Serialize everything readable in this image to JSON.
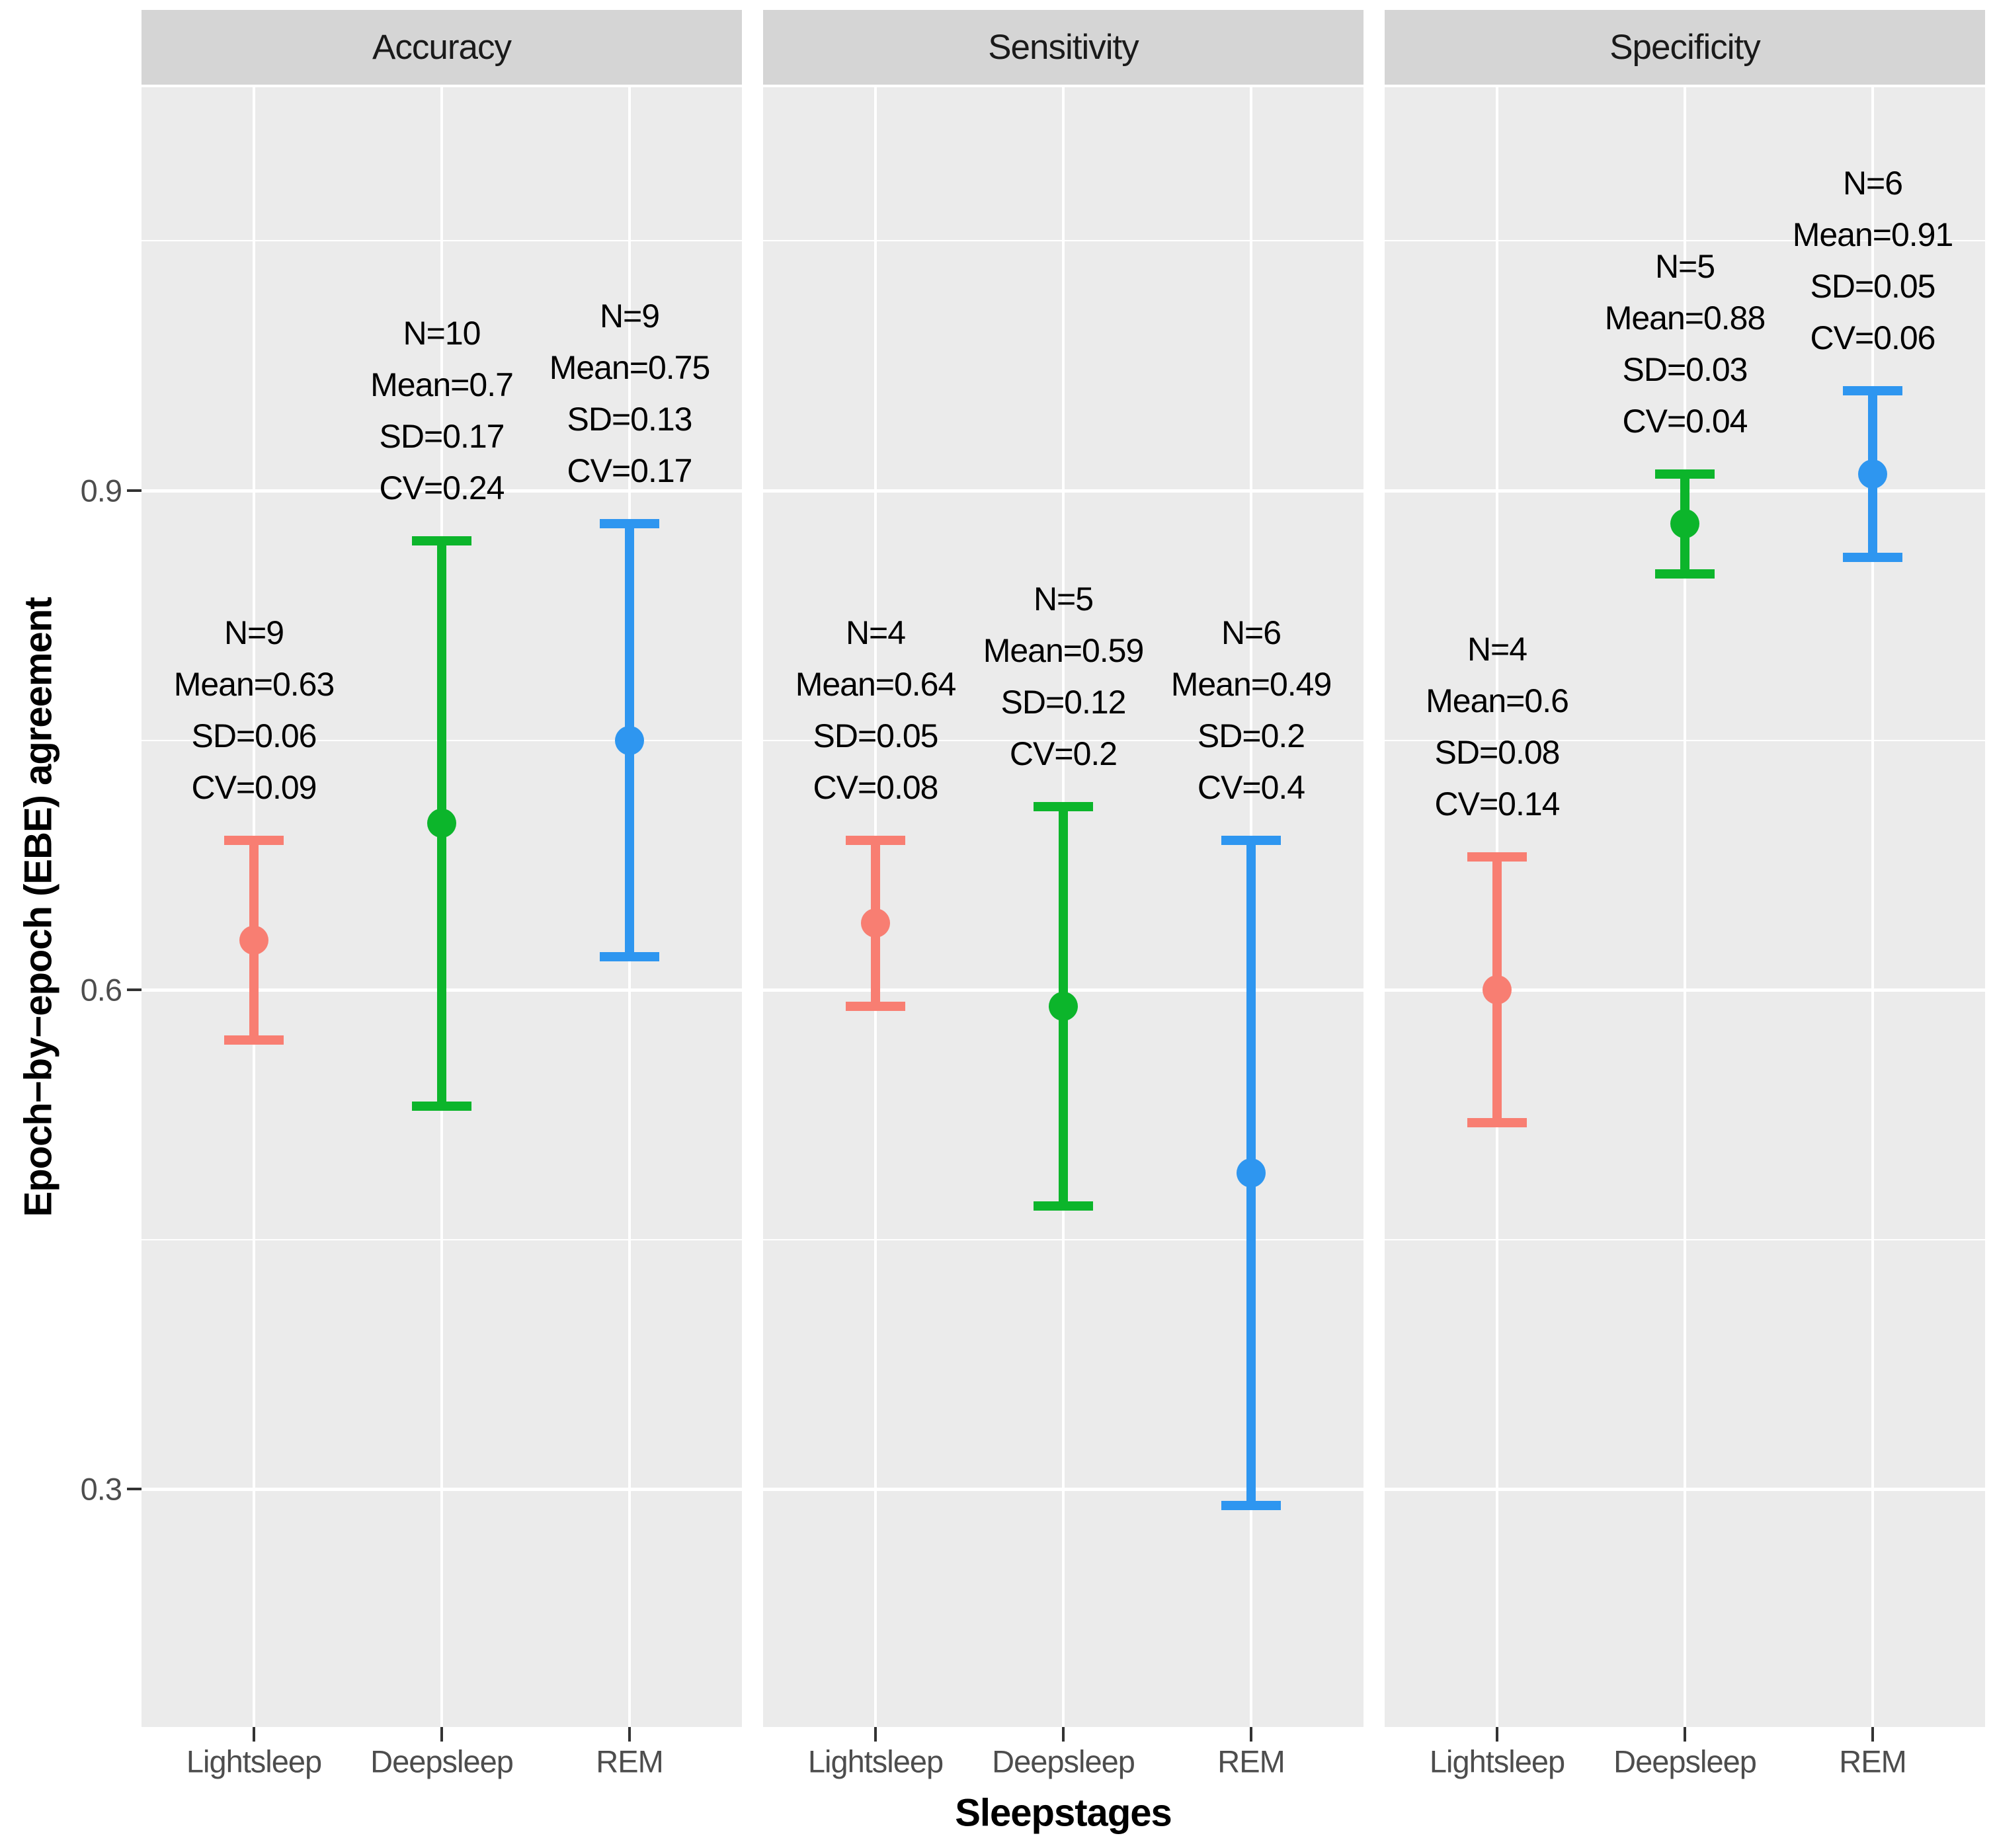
{
  "chart_data": {
    "type": "errorbar",
    "title": "",
    "xlabel": "Sleepstages",
    "ylabel": "Epoch−by−epoch (EBE) agreement",
    "categories": [
      "Lightsleep",
      "Deepsleep",
      "REM"
    ],
    "yticks": [
      {
        "value": 0.9,
        "label": "0.9"
      },
      {
        "value": 0.6,
        "label": "0.6"
      },
      {
        "value": 0.3,
        "label": "0.3"
      }
    ],
    "yticks_minor": [
      1.05,
      0.75,
      0.45
    ],
    "ylim": [
      0.16,
      1.14
    ],
    "grid": "white major+minor horizontal, white major vertical on grey panel",
    "legend_position": "none",
    "error_bar_rule": "mean ± SD",
    "panel_bg": "#EBEBEB",
    "strip_bg": "#D5D5D5",
    "colors": {
      "Lightsleep": "#F87E72",
      "Deepsleep": "#0CB52B",
      "REM": "#2E96F0"
    },
    "facets": [
      {
        "label": "Accuracy",
        "points": [
          {
            "stage": "Lightsleep",
            "n": 9,
            "mean": 0.63,
            "sd": 0.06,
            "cv": 0.09,
            "labels": {
              "n": "N=9",
              "mean": "Mean=0.63",
              "sd": "SD=0.06",
              "cv": "CV=0.09"
            }
          },
          {
            "stage": "Deepsleep",
            "n": 10,
            "mean": 0.7,
            "sd": 0.17,
            "cv": 0.24,
            "labels": {
              "n": "N=10",
              "mean": "Mean=0.7",
              "sd": "SD=0.17",
              "cv": "CV=0.24"
            }
          },
          {
            "stage": "REM",
            "n": 9,
            "mean": 0.75,
            "sd": 0.13,
            "cv": 0.17,
            "labels": {
              "n": "N=9",
              "mean": "Mean=0.75",
              "sd": "SD=0.13",
              "cv": "CV=0.17"
            }
          }
        ]
      },
      {
        "label": "Sensitivity",
        "points": [
          {
            "stage": "Lightsleep",
            "n": 4,
            "mean": 0.64,
            "sd": 0.05,
            "cv": 0.08,
            "labels": {
              "n": "N=4",
              "mean": "Mean=0.64",
              "sd": "SD=0.05",
              "cv": "CV=0.08"
            }
          },
          {
            "stage": "Deepsleep",
            "n": 5,
            "mean": 0.59,
            "sd": 0.12,
            "cv": 0.2,
            "labels": {
              "n": "N=5",
              "mean": "Mean=0.59",
              "sd": "SD=0.12",
              "cv": "CV=0.2"
            }
          },
          {
            "stage": "REM",
            "n": 6,
            "mean": 0.49,
            "sd": 0.2,
            "cv": 0.4,
            "labels": {
              "n": "N=6",
              "mean": "Mean=0.49",
              "sd": "SD=0.2",
              "cv": "CV=0.4"
            }
          }
        ]
      },
      {
        "label": "Specificity",
        "points": [
          {
            "stage": "Lightsleep",
            "n": 4,
            "mean": 0.6,
            "sd": 0.08,
            "cv": 0.14,
            "labels": {
              "n": "N=4",
              "mean": "Mean=0.6",
              "sd": "SD=0.08",
              "cv": "CV=0.14"
            }
          },
          {
            "stage": "Deepsleep",
            "n": 5,
            "mean": 0.88,
            "sd": 0.03,
            "cv": 0.04,
            "labels": {
              "n": "N=5",
              "mean": "Mean=0.88",
              "sd": "SD=0.03",
              "cv": "CV=0.04"
            }
          },
          {
            "stage": "REM",
            "n": 6,
            "mean": 0.91,
            "sd": 0.05,
            "cv": 0.06,
            "labels": {
              "n": "N=6",
              "mean": "Mean=0.91",
              "sd": "SD=0.05",
              "cv": "CV=0.06"
            }
          }
        ]
      }
    ]
  }
}
